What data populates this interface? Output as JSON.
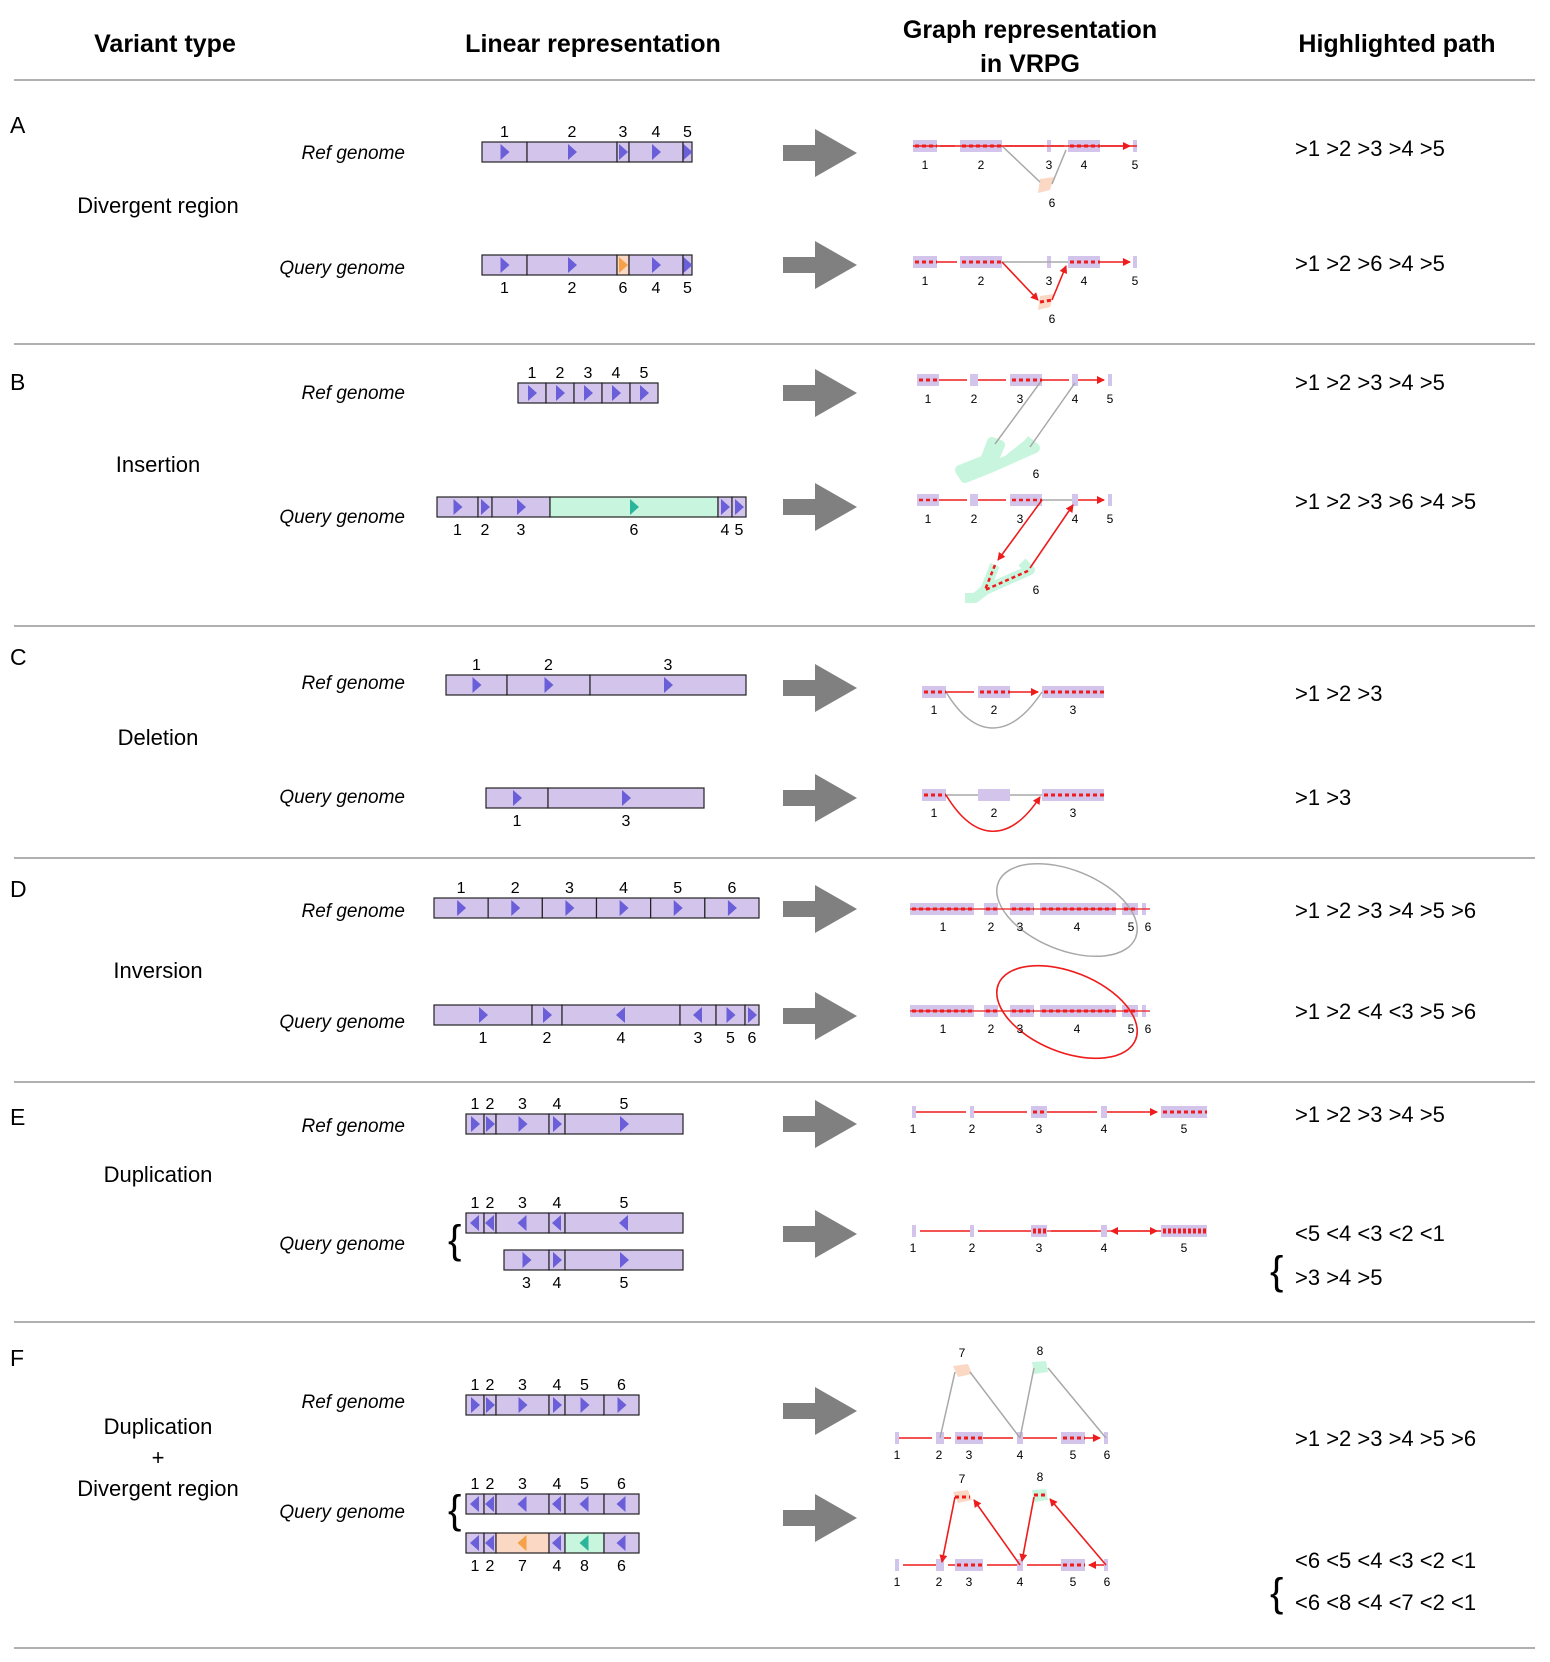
{
  "headers": {
    "variant_type": "Variant type",
    "linear": "Linear representation",
    "graph_line1": "Graph representation",
    "graph_line2": "in VRPG",
    "highlighted": "Highlighted path"
  },
  "labels": {
    "ref": "Ref genome",
    "query": "Query genome"
  },
  "colors": {
    "segment": "#d3c4ec",
    "arrow": "#6a5fd8",
    "orange": "#f5a14a",
    "orange_fill": "#fbd8c4",
    "green": "#2bb59a",
    "green_fill": "#c8f5dd",
    "path_red": "#ee1c1c",
    "edge_gray": "#a8a8a8",
    "block_arrow": "#808080",
    "divider": "#b0b0b0"
  },
  "sections": [
    {
      "letter": "A",
      "variant": [
        "Divergent region"
      ],
      "ref_path": [
        ">1 >2 >3 >4 >5"
      ],
      "query_path": [
        ">1 >2 >6 >4 >5"
      ],
      "ref_linear": {
        "segments": [
          {
            "label": "1",
            "arrow": "right"
          },
          {
            "label": "2",
            "arrow": "right"
          },
          {
            "label": "3",
            "arrow": "right"
          },
          {
            "label": "4",
            "arrow": "right"
          },
          {
            "label": "5",
            "arrow": "right"
          }
        ]
      },
      "query_linear": {
        "segments": [
          {
            "label": "1",
            "arrow": "right"
          },
          {
            "label": "2",
            "arrow": "right"
          },
          {
            "label": "6",
            "arrow": "right",
            "color": "orange"
          },
          {
            "label": "4",
            "arrow": "right"
          },
          {
            "label": "5",
            "arrow": "right"
          }
        ]
      }
    },
    {
      "letter": "B",
      "variant": [
        "Insertion"
      ],
      "ref_path": [
        ">1 >2 >3 >4 >5"
      ],
      "query_path": [
        ">1 >2 >3 >6 >4 >5"
      ],
      "ref_linear": {
        "segments": [
          {
            "label": "1"
          },
          {
            "label": "2"
          },
          {
            "label": "3"
          },
          {
            "label": "4"
          },
          {
            "label": "5"
          }
        ]
      },
      "query_linear": {
        "segments": [
          {
            "label": "1"
          },
          {
            "label": "2"
          },
          {
            "label": "3"
          },
          {
            "label": "6",
            "color": "green"
          },
          {
            "label": "4"
          },
          {
            "label": "5"
          }
        ]
      }
    },
    {
      "letter": "C",
      "variant": [
        "Deletion"
      ],
      "ref_path": [
        ">1 >2 >3"
      ],
      "query_path": [
        ">1 >3"
      ],
      "ref_linear": {
        "segments": [
          {
            "label": "1"
          },
          {
            "label": "2"
          },
          {
            "label": "3"
          }
        ]
      },
      "query_linear": {
        "segments": [
          {
            "label": "1"
          },
          {
            "label": "3"
          }
        ]
      }
    },
    {
      "letter": "D",
      "variant": [
        "Inversion"
      ],
      "ref_path": [
        ">1 >2 >3 >4 >5 >6"
      ],
      "query_path": [
        ">1 >2 <4 <3 >5 >6"
      ],
      "ref_linear": {
        "segments": [
          {
            "label": "1"
          },
          {
            "label": "2"
          },
          {
            "label": "3"
          },
          {
            "label": "4"
          },
          {
            "label": "5"
          },
          {
            "label": "6"
          }
        ]
      },
      "query_linear": {
        "segments": [
          {
            "label": "1"
          },
          {
            "label": "2"
          },
          {
            "label": "4",
            "arrow": "left"
          },
          {
            "label": "3",
            "arrow": "left"
          },
          {
            "label": "5"
          },
          {
            "label": "6"
          }
        ]
      }
    },
    {
      "letter": "E",
      "variant": [
        "Duplication"
      ],
      "ref_path": [
        ">1 >2 >3 >4 >5"
      ],
      "query_path": [
        "<5 <4 <3 <2 <1",
        ">3 >4 >5"
      ],
      "ref_linear": {
        "segments": [
          {
            "label": "1"
          },
          {
            "label": "2"
          },
          {
            "label": "3"
          },
          {
            "label": "4"
          },
          {
            "label": "5"
          }
        ]
      },
      "query_linear": {
        "segments": [
          {
            "label": "1",
            "arrow": "left"
          },
          {
            "label": "2",
            "arrow": "left"
          },
          {
            "label": "3",
            "arrow": "left"
          },
          {
            "label": "4",
            "arrow": "left"
          },
          {
            "label": "5",
            "arrow": "left"
          }
        ]
      },
      "query_linear2": {
        "segments": [
          {
            "label": "3"
          },
          {
            "label": "4"
          },
          {
            "label": "5"
          }
        ]
      }
    },
    {
      "letter": "F",
      "variant": [
        "Duplication",
        "+",
        "Divergent region"
      ],
      "ref_path": [
        ">1 >2 >3 >4 >5 >6"
      ],
      "query_path": [
        "<6 <5 <4 <3 <2 <1",
        "<6 <8 <4 <7 <2 <1"
      ],
      "ref_linear": {
        "segments": [
          {
            "label": "1"
          },
          {
            "label": "2"
          },
          {
            "label": "3"
          },
          {
            "label": "4"
          },
          {
            "label": "5"
          },
          {
            "label": "6"
          }
        ]
      },
      "query_linear": {
        "segments": [
          {
            "label": "1",
            "arrow": "left"
          },
          {
            "label": "2",
            "arrow": "left"
          },
          {
            "label": "3",
            "arrow": "left"
          },
          {
            "label": "4",
            "arrow": "left"
          },
          {
            "label": "5",
            "arrow": "left"
          },
          {
            "label": "6",
            "arrow": "left"
          }
        ]
      },
      "query_linear2": {
        "segments": [
          {
            "label": "1",
            "arrow": "left"
          },
          {
            "label": "2",
            "arrow": "left"
          },
          {
            "label": "7",
            "arrow": "left",
            "color": "orange"
          },
          {
            "label": "4",
            "arrow": "left"
          },
          {
            "label": "8",
            "arrow": "left",
            "color": "green"
          },
          {
            "label": "6",
            "arrow": "left"
          }
        ]
      }
    }
  ]
}
